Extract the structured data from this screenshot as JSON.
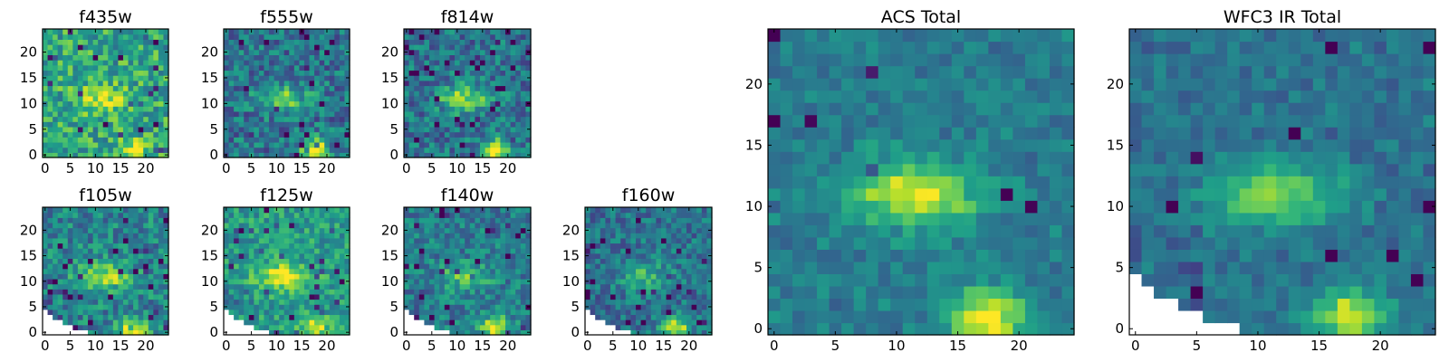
{
  "chart_data": [
    {
      "type": "heatmap",
      "title": "f435w",
      "x_ticks": [
        "0",
        "5",
        "10",
        "15",
        "20"
      ],
      "y_ticks": [
        "0",
        "5",
        "10",
        "15",
        "20"
      ],
      "xlim": [
        0,
        25
      ],
      "ylim": [
        0,
        25
      ],
      "colormap": "viridis",
      "grid": false
    },
    {
      "type": "heatmap",
      "title": "f555w",
      "x_ticks": [
        "0",
        "5",
        "10",
        "15",
        "20"
      ],
      "y_ticks": [
        "0",
        "5",
        "10",
        "15",
        "20"
      ],
      "xlim": [
        0,
        25
      ],
      "ylim": [
        0,
        25
      ],
      "colormap": "viridis",
      "grid": false
    },
    {
      "type": "heatmap",
      "title": "f814w",
      "x_ticks": [
        "0",
        "5",
        "10",
        "15",
        "20"
      ],
      "y_ticks": [
        "0",
        "5",
        "10",
        "15",
        "20"
      ],
      "xlim": [
        0,
        25
      ],
      "ylim": [
        0,
        25
      ],
      "colormap": "viridis",
      "grid": false
    },
    {
      "type": "heatmap",
      "title": "f105w",
      "x_ticks": [
        "0",
        "5",
        "10",
        "15",
        "20"
      ],
      "y_ticks": [
        "0",
        "5",
        "10",
        "15",
        "20"
      ],
      "xlim": [
        0,
        25
      ],
      "ylim": [
        0,
        25
      ],
      "colormap": "viridis",
      "grid": false
    },
    {
      "type": "heatmap",
      "title": "f125w",
      "x_ticks": [
        "0",
        "5",
        "10",
        "15",
        "20"
      ],
      "y_ticks": [
        "0",
        "5",
        "10",
        "15",
        "20"
      ],
      "xlim": [
        0,
        25
      ],
      "ylim": [
        0,
        25
      ],
      "colormap": "viridis",
      "grid": false
    },
    {
      "type": "heatmap",
      "title": "f140w",
      "x_ticks": [
        "0",
        "5",
        "10",
        "15",
        "20"
      ],
      "y_ticks": [
        "0",
        "5",
        "10",
        "15",
        "20"
      ],
      "xlim": [
        0,
        25
      ],
      "ylim": [
        0,
        25
      ],
      "colormap": "viridis",
      "grid": false
    },
    {
      "type": "heatmap",
      "title": "f160w",
      "x_ticks": [
        "0",
        "5",
        "10",
        "15",
        "20"
      ],
      "y_ticks": [
        "0",
        "5",
        "10",
        "15",
        "20"
      ],
      "xlim": [
        0,
        25
      ],
      "ylim": [
        0,
        25
      ],
      "colormap": "viridis",
      "grid": false
    },
    {
      "type": "heatmap",
      "title": "ACS Total",
      "x_ticks": [
        "0",
        "5",
        "10",
        "15",
        "20"
      ],
      "y_ticks": [
        "0",
        "5",
        "10",
        "15",
        "20"
      ],
      "xlim": [
        0,
        25
      ],
      "ylim": [
        0,
        25
      ],
      "colormap": "viridis",
      "grid": false
    },
    {
      "type": "heatmap",
      "title": "WFC3 IR Total",
      "x_ticks": [
        "0",
        "5",
        "10",
        "15",
        "20"
      ],
      "y_ticks": [
        "0",
        "5",
        "10",
        "15",
        "20"
      ],
      "xlim": [
        0,
        25
      ],
      "ylim": [
        0,
        25
      ],
      "colormap": "viridis",
      "grid": false
    }
  ]
}
